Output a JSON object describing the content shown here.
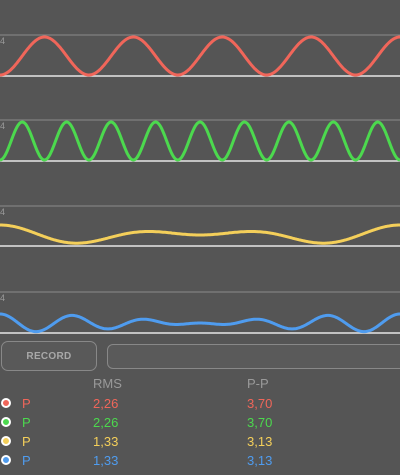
{
  "channels": [
    {
      "label": "P",
      "color": "#f0665a",
      "rms": "2,26",
      "pp": "3,70",
      "freq": 4.5,
      "harmonics": [
        [
          1,
          1,
          0
        ]
      ],
      "amp": 19,
      "phase": 3.14
    },
    {
      "label": "P",
      "color": "#4cd94e",
      "rms": "2,26",
      "pp": "3,70",
      "freq": 9,
      "harmonics": [
        [
          1,
          1,
          0
        ]
      ],
      "amp": 19,
      "phase": 3.14
    },
    {
      "label": "P",
      "color": "#f4cf5a",
      "rms": "1,33",
      "pp": "3,13",
      "freq": 1,
      "harmonics": [
        [
          2,
          1,
          0
        ],
        [
          3,
          1,
          0
        ]
      ],
      "amp": 10,
      "phase": 0
    },
    {
      "label": "P",
      "color": "#4f9cef",
      "rms": "1,33",
      "pp": "3,13",
      "freq": 1,
      "harmonics": [
        [
          5,
          1,
          0
        ],
        [
          6,
          1,
          0
        ]
      ],
      "amp": 9,
      "phase": 0
    }
  ],
  "tick_label": "4",
  "record_label": "RECORD",
  "name_field_value": "",
  "headers": {
    "rms": "RMS",
    "pp": "P-P"
  },
  "colors": {
    "background": "#555555",
    "gridline": "#8a8a8a",
    "baseline": "#e6e6e6"
  }
}
